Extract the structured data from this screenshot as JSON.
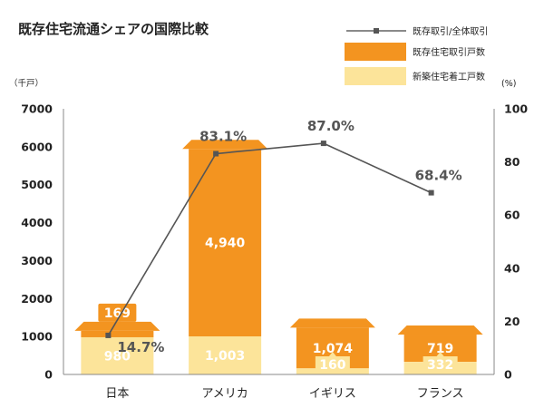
{
  "chart_data": {
    "type": "bar",
    "title": "既存住宅流通シェアの国際比較",
    "left_unit": "（千戸）",
    "right_unit": "(%)",
    "categories": [
      "日本",
      "アメリカ",
      "イギリス",
      "フランス"
    ],
    "left_axis": {
      "ylim": [
        0,
        7000
      ],
      "ticks": [
        "0",
        "1000",
        "2000",
        "3000",
        "4000",
        "5000",
        "6000",
        "7000"
      ]
    },
    "right_axis": {
      "ylim": [
        0,
        100
      ],
      "ticks": [
        "0",
        "20",
        "40",
        "60",
        "80",
        "100"
      ]
    },
    "legend_position": "top-right",
    "series": [
      {
        "name": "新築住宅着工戸数",
        "type": "bar",
        "color": "#FCE49A",
        "values": [
          980,
          1003,
          160,
          332
        ],
        "labels": [
          "980",
          "1,003",
          "160",
          "332"
        ]
      },
      {
        "name": "既存住宅取引戸数",
        "type": "bar",
        "color": "#F39420",
        "values": [
          169,
          4940,
          1074,
          719
        ],
        "labels": [
          "169",
          "4,940",
          "1,074",
          "719"
        ]
      },
      {
        "name": "既存取引/全体取引",
        "type": "line",
        "axis": "right",
        "color": "#555555",
        "values": [
          14.7,
          83.1,
          87.0,
          68.4
        ],
        "labels": [
          "14.7%",
          "83.1%",
          "87.0%",
          "68.4%"
        ]
      }
    ]
  }
}
